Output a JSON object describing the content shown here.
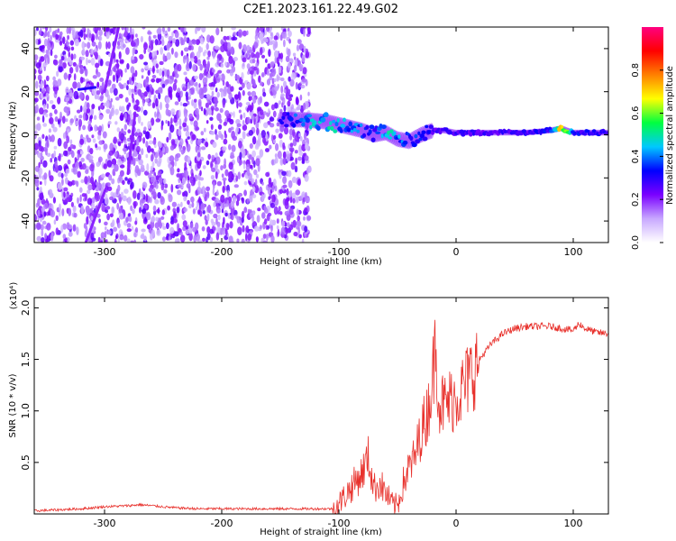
{
  "title": "C2E1.2023.161.22.49.G02",
  "chart_data": [
    {
      "type": "heatmap",
      "xlabel": "Height of straight line (km)",
      "ylabel": "Frequency (Hz)",
      "xlim": [
        -360,
        130
      ],
      "ylim": [
        -50,
        50
      ],
      "xticks": [
        -300,
        -200,
        -100,
        0,
        100
      ],
      "yticks": [
        -40,
        -20,
        0,
        20,
        40
      ],
      "colorbar": {
        "label": "Normalized spectral amplitude",
        "range": [
          0,
          1
        ],
        "ticks": [
          0.0,
          0.2,
          0.4,
          0.6,
          0.8
        ],
        "colormap": [
          "#ffffff",
          "#c8a8ff",
          "#7a00ff",
          "#0000ff",
          "#00c8ff",
          "#00ff40",
          "#ffff00",
          "#ff8000",
          "#ff0000",
          "#ff0080"
        ]
      },
      "noise_region_x": [
        -360,
        -125
      ],
      "ridge": {
        "x": [
          -150,
          -130,
          -110,
          -95,
          -80,
          -70,
          -60,
          -50,
          -40,
          -30,
          -20,
          -10,
          0,
          20,
          40,
          60,
          80,
          90,
          100,
          130
        ],
        "y": [
          7,
          7,
          6,
          4,
          2,
          0,
          1,
          -2,
          -3,
          0,
          2,
          2,
          1,
          1,
          1,
          1,
          2,
          3,
          1,
          1
        ],
        "amplitude": [
          0.3,
          0.45,
          0.5,
          0.45,
          0.4,
          0.35,
          0.5,
          0.45,
          0.35,
          0.4,
          0.3,
          0.3,
          0.3,
          0.3,
          0.3,
          0.3,
          0.35,
          0.8,
          0.35,
          0.3
        ]
      },
      "streaks": [
        {
          "x": [
            -316,
            -299
          ],
          "y": [
            -50,
            -25
          ],
          "amplitude": 0.2
        },
        {
          "x": [
            -300,
            -288
          ],
          "y": [
            20,
            50
          ],
          "amplitude": 0.2
        },
        {
          "x": [
            -280,
            -274
          ],
          "y": [
            -18,
            10
          ],
          "amplitude": 0.2
        },
        {
          "x": [
            -322,
            -308
          ],
          "y": [
            21,
            22
          ],
          "amplitude": 0.3
        }
      ]
    },
    {
      "type": "line",
      "xlabel": "Height of straight line (km)",
      "ylabel": "SNR (10 * v/v)",
      "y_multiplier": "(x10⁴)",
      "xlim": [
        -360,
        130
      ],
      "ylim": [
        0,
        2.1
      ],
      "xticks": [
        -300,
        -200,
        -100,
        0,
        100
      ],
      "yticks": [
        0.5,
        1.0,
        1.5,
        2.0
      ],
      "color": "#e8312c",
      "series": [
        {
          "x": [
            -360,
            -340,
            -320,
            -300,
            -280,
            -270,
            -260,
            -240,
            -220,
            -200,
            -180,
            -160,
            -140,
            -120,
            -105,
            -100,
            -90,
            -80,
            -75,
            -70,
            -65,
            -60,
            -55,
            -50,
            -45,
            -40,
            -35,
            -30,
            -25,
            -20,
            -17,
            -15,
            -10,
            -5,
            0,
            5,
            10,
            20,
            30,
            40,
            50,
            60,
            70,
            80,
            90,
            100,
            105,
            110,
            120,
            130
          ],
          "y": [
            0.03,
            0.04,
            0.05,
            0.07,
            0.08,
            0.09,
            0.08,
            0.06,
            0.05,
            0.05,
            0.05,
            0.05,
            0.05,
            0.05,
            0.05,
            0.1,
            0.25,
            0.4,
            0.55,
            0.25,
            0.3,
            0.2,
            0.1,
            0.08,
            0.3,
            0.45,
            0.55,
            0.8,
            0.95,
            1.3,
            1.75,
            1.1,
            1.05,
            1.1,
            1.15,
            1.2,
            1.3,
            1.5,
            1.65,
            1.75,
            1.8,
            1.82,
            1.82,
            1.82,
            1.8,
            1.78,
            1.85,
            1.8,
            1.76,
            1.75
          ]
        }
      ]
    }
  ]
}
